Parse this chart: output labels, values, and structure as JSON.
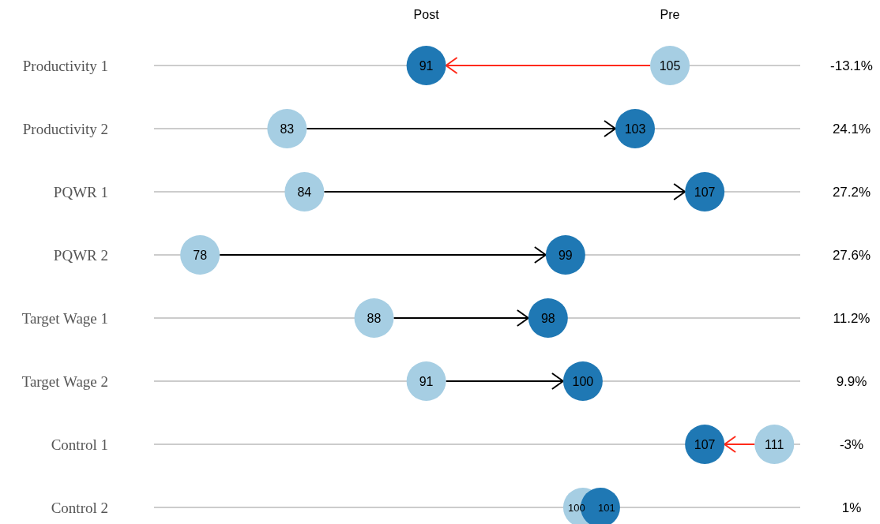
{
  "chart_data": {
    "type": "scatter",
    "orientation": "horizontal",
    "categories": [
      "Productivity 1",
      "Productivity 2",
      "PQWR 1",
      "PQWR 2",
      "Target Wage 1",
      "Target Wage 2",
      "Control 1",
      "Control 2"
    ],
    "series": [
      {
        "name": "Pre",
        "color": "#a6cee3",
        "values": [
          105,
          83,
          84,
          78,
          88,
          91,
          111,
          100
        ]
      },
      {
        "name": "Post",
        "color": "#1f78b4",
        "values": [
          91,
          103,
          107,
          99,
          98,
          100,
          107,
          101
        ]
      }
    ],
    "annotations": [
      "-13.1%",
      "24.1%",
      "27.2%",
      "27.6%",
      "11.2%",
      "9.9%",
      "-3%",
      "1%"
    ],
    "data_labels": true,
    "grid": "y",
    "legend": "top",
    "marker": "circle",
    "tick_labels": "y"
  }
}
